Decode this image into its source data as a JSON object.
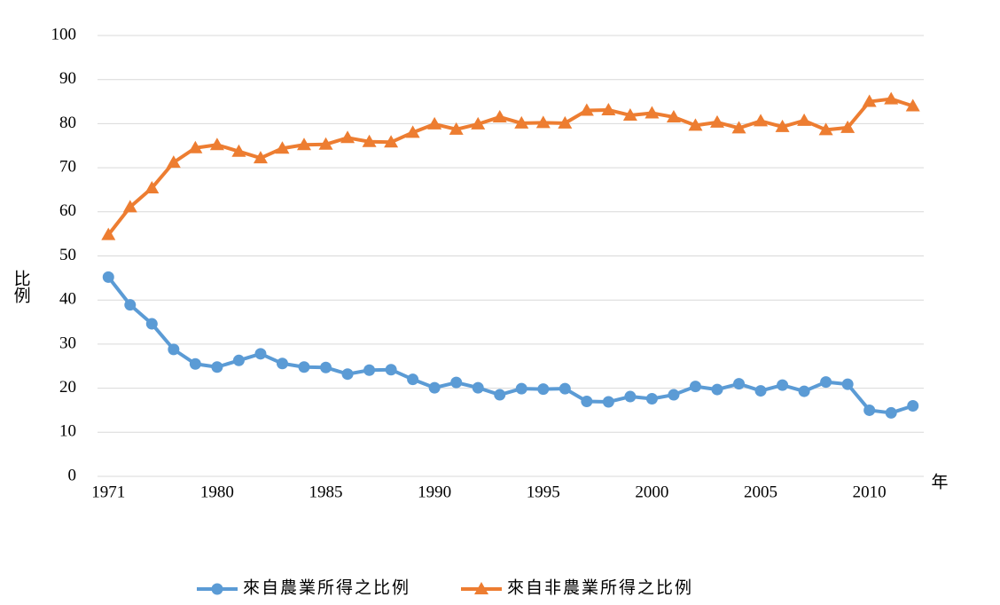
{
  "chart_data": {
    "type": "line",
    "y_label": "比例",
    "x_label": "年",
    "categories": [
      "1971",
      null,
      null,
      null,
      null,
      "1980",
      null,
      null,
      null,
      null,
      "1985",
      null,
      null,
      null,
      null,
      "1990",
      null,
      null,
      null,
      null,
      "1995",
      null,
      null,
      null,
      null,
      "2000",
      null,
      null,
      null,
      null,
      "2005",
      null,
      null,
      null,
      null,
      "2010",
      null,
      null
    ],
    "series": [
      {
        "name": "來自農業所得之比例",
        "color": "#5b9bd5",
        "marker": "circle",
        "values": [
          45.2,
          38.9,
          34.6,
          28.8,
          25.5,
          24.8,
          26.3,
          27.8,
          25.6,
          24.8,
          24.7,
          23.2,
          24.1,
          24.2,
          22.0,
          20.1,
          21.3,
          20.1,
          18.5,
          19.9,
          19.8,
          19.9,
          17.0,
          16.9,
          18.1,
          17.6,
          18.5,
          20.4,
          19.7,
          21.0,
          19.4,
          20.7,
          19.3,
          21.4,
          20.9,
          15.0,
          14.4,
          16.0
        ]
      },
      {
        "name": "來自非農業所得之比例",
        "color": "#ed7d31",
        "marker": "triangle",
        "values": [
          54.8,
          61.1,
          65.4,
          71.2,
          74.5,
          75.2,
          73.7,
          72.2,
          74.4,
          75.2,
          75.3,
          76.8,
          75.9,
          75.8,
          78.0,
          79.9,
          78.7,
          79.9,
          81.5,
          80.1,
          80.2,
          80.1,
          83.0,
          83.1,
          81.9,
          82.4,
          81.5,
          79.6,
          80.3,
          79.0,
          80.6,
          79.3,
          80.7,
          78.6,
          79.1,
          85.0,
          85.6,
          84.0
        ]
      }
    ],
    "ylim": [
      0,
      100
    ],
    "yticks": [
      0,
      10,
      20,
      30,
      40,
      50,
      60,
      70,
      80,
      90,
      100
    ],
    "grid": true,
    "legend": "bottom"
  }
}
